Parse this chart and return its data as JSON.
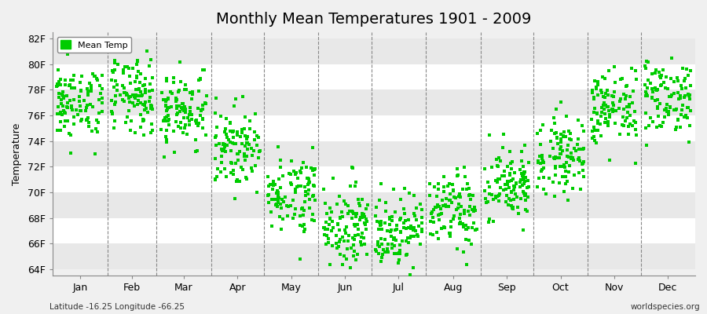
{
  "title": "Monthly Mean Temperatures 1901 - 2009",
  "ylabel": "Temperature",
  "xlabel_months": [
    "Jan",
    "Feb",
    "Mar",
    "Apr",
    "May",
    "Jun",
    "Jul",
    "Aug",
    "Sep",
    "Oct",
    "Nov",
    "Dec"
  ],
  "ytick_labels": [
    "64F",
    "66F",
    "68F",
    "70F",
    "72F",
    "74F",
    "76F",
    "78F",
    "80F",
    "82F"
  ],
  "ytick_values": [
    64,
    66,
    68,
    70,
    72,
    74,
    76,
    78,
    80,
    82
  ],
  "ylim": [
    63.5,
    82.5
  ],
  "xlim": [
    0,
    365
  ],
  "legend_label": "Mean Temp",
  "dot_color": "#00cc00",
  "bg_color": "#f0f0f0",
  "band_colors": [
    "#e8e8e8",
    "#ffffff"
  ],
  "grid_color": "#aaaaaa",
  "subtitle_left": "Latitude -16.25 Longitude -66.25",
  "subtitle_right": "worldspecies.org",
  "n_years": 109,
  "month_means": [
    77.0,
    77.5,
    76.5,
    73.5,
    70.0,
    67.5,
    67.0,
    68.5,
    70.5,
    73.0,
    76.5,
    77.5
  ],
  "month_stds": [
    1.5,
    1.5,
    1.5,
    1.5,
    1.5,
    1.5,
    1.5,
    1.5,
    1.5,
    1.5,
    1.5,
    1.5
  ],
  "seed": 42
}
